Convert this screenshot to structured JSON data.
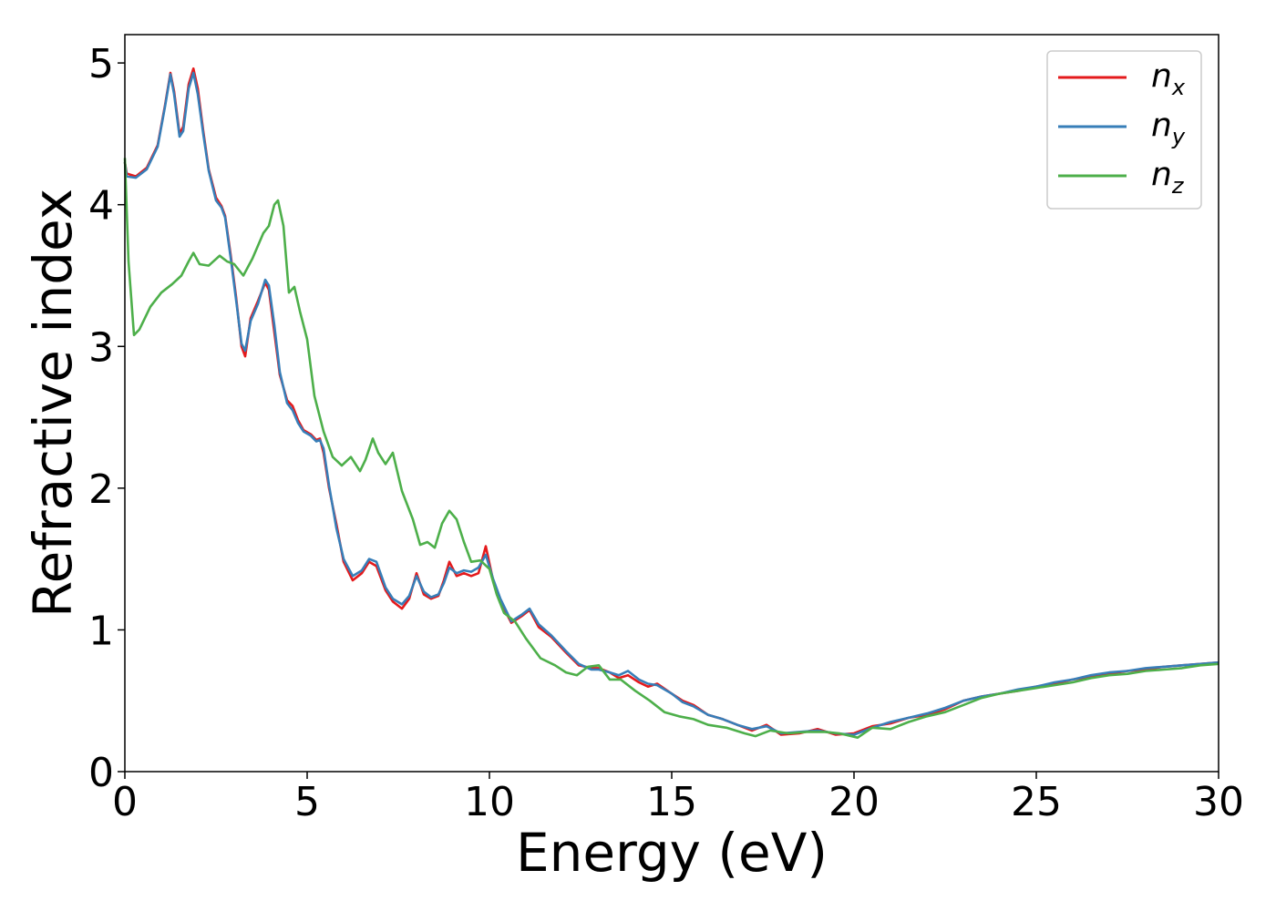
{
  "chart_data": {
    "type": "line",
    "title": "",
    "xlabel": "Energy (eV)",
    "ylabel": "Refractive index",
    "xlim": [
      0,
      30
    ],
    "ylim": [
      0,
      5.2
    ],
    "xticks": [
      0,
      5,
      10,
      15,
      20,
      25,
      30
    ],
    "yticks": [
      0,
      1,
      2,
      3,
      4,
      5
    ],
    "grid": false,
    "legend_position": "top-right",
    "series": [
      {
        "name": "n_x",
        "label_main": "n",
        "label_sub": "x",
        "color": "#e41a1c",
        "points": [
          [
            0,
            4.3
          ],
          [
            0.05,
            4.22
          ],
          [
            0.3,
            4.2
          ],
          [
            0.6,
            4.26
          ],
          [
            0.9,
            4.42
          ],
          [
            1.1,
            4.7
          ],
          [
            1.25,
            4.93
          ],
          [
            1.35,
            4.8
          ],
          [
            1.5,
            4.5
          ],
          [
            1.6,
            4.55
          ],
          [
            1.75,
            4.85
          ],
          [
            1.88,
            4.96
          ],
          [
            2.0,
            4.82
          ],
          [
            2.15,
            4.52
          ],
          [
            2.3,
            4.25
          ],
          [
            2.5,
            4.05
          ],
          [
            2.65,
            3.99
          ],
          [
            2.75,
            3.92
          ],
          [
            2.9,
            3.65
          ],
          [
            3.05,
            3.35
          ],
          [
            3.2,
            3.0
          ],
          [
            3.3,
            2.93
          ],
          [
            3.45,
            3.2
          ],
          [
            3.65,
            3.32
          ],
          [
            3.85,
            3.45
          ],
          [
            3.95,
            3.4
          ],
          [
            4.1,
            3.1
          ],
          [
            4.25,
            2.8
          ],
          [
            4.45,
            2.62
          ],
          [
            4.6,
            2.58
          ],
          [
            4.75,
            2.48
          ],
          [
            4.9,
            2.41
          ],
          [
            5.1,
            2.38
          ],
          [
            5.25,
            2.34
          ],
          [
            5.35,
            2.35
          ],
          [
            5.45,
            2.25
          ],
          [
            5.6,
            2.0
          ],
          [
            5.8,
            1.75
          ],
          [
            6.0,
            1.48
          ],
          [
            6.25,
            1.35
          ],
          [
            6.5,
            1.4
          ],
          [
            6.7,
            1.48
          ],
          [
            6.9,
            1.45
          ],
          [
            7.15,
            1.28
          ],
          [
            7.35,
            1.2
          ],
          [
            7.6,
            1.15
          ],
          [
            7.8,
            1.22
          ],
          [
            8.0,
            1.4
          ],
          [
            8.2,
            1.25
          ],
          [
            8.4,
            1.22
          ],
          [
            8.6,
            1.24
          ],
          [
            8.75,
            1.35
          ],
          [
            8.9,
            1.48
          ],
          [
            9.1,
            1.38
          ],
          [
            9.3,
            1.4
          ],
          [
            9.5,
            1.38
          ],
          [
            9.7,
            1.4
          ],
          [
            9.9,
            1.59
          ],
          [
            10.1,
            1.35
          ],
          [
            10.3,
            1.2
          ],
          [
            10.6,
            1.05
          ],
          [
            10.9,
            1.1
          ],
          [
            11.1,
            1.14
          ],
          [
            11.35,
            1.02
          ],
          [
            11.7,
            0.95
          ],
          [
            12.1,
            0.84
          ],
          [
            12.45,
            0.75
          ],
          [
            12.8,
            0.73
          ],
          [
            13.0,
            0.73
          ],
          [
            13.3,
            0.7
          ],
          [
            13.55,
            0.66
          ],
          [
            13.8,
            0.68
          ],
          [
            14.1,
            0.63
          ],
          [
            14.35,
            0.6
          ],
          [
            14.6,
            0.62
          ],
          [
            15.0,
            0.55
          ],
          [
            15.3,
            0.5
          ],
          [
            15.6,
            0.47
          ],
          [
            16.0,
            0.4
          ],
          [
            16.4,
            0.37
          ],
          [
            16.8,
            0.33
          ],
          [
            17.2,
            0.29
          ],
          [
            17.6,
            0.33
          ],
          [
            18.0,
            0.26
          ],
          [
            18.5,
            0.27
          ],
          [
            19.0,
            0.3
          ],
          [
            19.5,
            0.26
          ],
          [
            20.0,
            0.27
          ],
          [
            20.5,
            0.32
          ],
          [
            21.0,
            0.34
          ],
          [
            21.5,
            0.38
          ],
          [
            22.0,
            0.4
          ],
          [
            22.5,
            0.44
          ],
          [
            23.0,
            0.5
          ],
          [
            23.5,
            0.53
          ],
          [
            24.0,
            0.55
          ],
          [
            24.5,
            0.57
          ],
          [
            25.0,
            0.6
          ],
          [
            25.5,
            0.62
          ],
          [
            26.0,
            0.65
          ],
          [
            26.5,
            0.67
          ],
          [
            27.0,
            0.69
          ],
          [
            27.5,
            0.71
          ],
          [
            28.0,
            0.72
          ],
          [
            28.5,
            0.74
          ],
          [
            29.0,
            0.75
          ],
          [
            29.5,
            0.76
          ],
          [
            30.0,
            0.77
          ]
        ]
      },
      {
        "name": "n_y",
        "label_main": "n",
        "label_sub": "y",
        "color": "#377eb8",
        "points": [
          [
            0,
            4.3
          ],
          [
            0.05,
            4.2
          ],
          [
            0.3,
            4.19
          ],
          [
            0.6,
            4.25
          ],
          [
            0.9,
            4.41
          ],
          [
            1.1,
            4.69
          ],
          [
            1.25,
            4.92
          ],
          [
            1.35,
            4.78
          ],
          [
            1.5,
            4.48
          ],
          [
            1.6,
            4.52
          ],
          [
            1.75,
            4.82
          ],
          [
            1.88,
            4.93
          ],
          [
            2.0,
            4.78
          ],
          [
            2.15,
            4.5
          ],
          [
            2.3,
            4.24
          ],
          [
            2.5,
            4.03
          ],
          [
            2.65,
            3.98
          ],
          [
            2.75,
            3.91
          ],
          [
            2.9,
            3.63
          ],
          [
            3.05,
            3.33
          ],
          [
            3.2,
            3.02
          ],
          [
            3.3,
            2.97
          ],
          [
            3.45,
            3.18
          ],
          [
            3.65,
            3.3
          ],
          [
            3.85,
            3.47
          ],
          [
            3.95,
            3.43
          ],
          [
            4.1,
            3.15
          ],
          [
            4.25,
            2.82
          ],
          [
            4.45,
            2.6
          ],
          [
            4.6,
            2.55
          ],
          [
            4.75,
            2.46
          ],
          [
            4.9,
            2.4
          ],
          [
            5.1,
            2.37
          ],
          [
            5.25,
            2.33
          ],
          [
            5.35,
            2.34
          ],
          [
            5.45,
            2.28
          ],
          [
            5.6,
            2.02
          ],
          [
            5.8,
            1.72
          ],
          [
            6.0,
            1.5
          ],
          [
            6.25,
            1.38
          ],
          [
            6.5,
            1.42
          ],
          [
            6.7,
            1.5
          ],
          [
            6.9,
            1.48
          ],
          [
            7.15,
            1.3
          ],
          [
            7.35,
            1.22
          ],
          [
            7.6,
            1.18
          ],
          [
            7.8,
            1.24
          ],
          [
            8.0,
            1.38
          ],
          [
            8.2,
            1.27
          ],
          [
            8.4,
            1.23
          ],
          [
            8.6,
            1.25
          ],
          [
            8.75,
            1.33
          ],
          [
            8.9,
            1.44
          ],
          [
            9.1,
            1.4
          ],
          [
            9.3,
            1.42
          ],
          [
            9.5,
            1.41
          ],
          [
            9.7,
            1.44
          ],
          [
            9.9,
            1.53
          ],
          [
            10.1,
            1.36
          ],
          [
            10.3,
            1.22
          ],
          [
            10.6,
            1.06
          ],
          [
            10.9,
            1.11
          ],
          [
            11.1,
            1.15
          ],
          [
            11.35,
            1.04
          ],
          [
            11.7,
            0.96
          ],
          [
            12.1,
            0.85
          ],
          [
            12.45,
            0.76
          ],
          [
            12.8,
            0.72
          ],
          [
            13.0,
            0.72
          ],
          [
            13.3,
            0.7
          ],
          [
            13.55,
            0.68
          ],
          [
            13.8,
            0.71
          ],
          [
            14.1,
            0.65
          ],
          [
            14.35,
            0.62
          ],
          [
            14.6,
            0.61
          ],
          [
            15.0,
            0.55
          ],
          [
            15.3,
            0.49
          ],
          [
            15.6,
            0.46
          ],
          [
            16.0,
            0.4
          ],
          [
            16.4,
            0.37
          ],
          [
            16.8,
            0.33
          ],
          [
            17.2,
            0.3
          ],
          [
            17.6,
            0.32
          ],
          [
            18.0,
            0.27
          ],
          [
            18.5,
            0.28
          ],
          [
            19.0,
            0.29
          ],
          [
            19.5,
            0.27
          ],
          [
            20.0,
            0.26
          ],
          [
            20.5,
            0.31
          ],
          [
            21.0,
            0.35
          ],
          [
            21.5,
            0.38
          ],
          [
            22.0,
            0.41
          ],
          [
            22.5,
            0.45
          ],
          [
            23.0,
            0.5
          ],
          [
            23.5,
            0.53
          ],
          [
            24.0,
            0.55
          ],
          [
            24.5,
            0.58
          ],
          [
            25.0,
            0.6
          ],
          [
            25.5,
            0.63
          ],
          [
            26.0,
            0.65
          ],
          [
            26.5,
            0.68
          ],
          [
            27.0,
            0.7
          ],
          [
            27.5,
            0.71
          ],
          [
            28.0,
            0.73
          ],
          [
            28.5,
            0.74
          ],
          [
            29.0,
            0.75
          ],
          [
            29.5,
            0.76
          ],
          [
            30.0,
            0.77
          ]
        ]
      },
      {
        "name": "n_z",
        "label_main": "n",
        "label_sub": "z",
        "color": "#4daf4a",
        "points": [
          [
            0,
            4.33
          ],
          [
            0.1,
            3.6
          ],
          [
            0.25,
            3.08
          ],
          [
            0.4,
            3.12
          ],
          [
            0.7,
            3.28
          ],
          [
            1.0,
            3.38
          ],
          [
            1.3,
            3.44
          ],
          [
            1.55,
            3.5
          ],
          [
            1.75,
            3.6
          ],
          [
            1.88,
            3.66
          ],
          [
            2.05,
            3.58
          ],
          [
            2.3,
            3.57
          ],
          [
            2.6,
            3.64
          ],
          [
            2.8,
            3.6
          ],
          [
            3.0,
            3.58
          ],
          [
            3.25,
            3.5
          ],
          [
            3.5,
            3.62
          ],
          [
            3.8,
            3.8
          ],
          [
            3.95,
            3.85
          ],
          [
            4.1,
            4.0
          ],
          [
            4.2,
            4.03
          ],
          [
            4.35,
            3.85
          ],
          [
            4.5,
            3.38
          ],
          [
            4.65,
            3.42
          ],
          [
            4.8,
            3.25
          ],
          [
            5.0,
            3.05
          ],
          [
            5.2,
            2.65
          ],
          [
            5.45,
            2.4
          ],
          [
            5.7,
            2.22
          ],
          [
            5.95,
            2.16
          ],
          [
            6.2,
            2.22
          ],
          [
            6.45,
            2.12
          ],
          [
            6.6,
            2.2
          ],
          [
            6.8,
            2.35
          ],
          [
            6.95,
            2.25
          ],
          [
            7.15,
            2.17
          ],
          [
            7.35,
            2.25
          ],
          [
            7.6,
            1.98
          ],
          [
            7.9,
            1.78
          ],
          [
            8.1,
            1.6
          ],
          [
            8.3,
            1.62
          ],
          [
            8.5,
            1.58
          ],
          [
            8.7,
            1.75
          ],
          [
            8.9,
            1.84
          ],
          [
            9.1,
            1.78
          ],
          [
            9.3,
            1.62
          ],
          [
            9.5,
            1.48
          ],
          [
            9.75,
            1.49
          ],
          [
            10.0,
            1.43
          ],
          [
            10.2,
            1.25
          ],
          [
            10.4,
            1.12
          ],
          [
            10.7,
            1.06
          ],
          [
            11.0,
            0.94
          ],
          [
            11.4,
            0.8
          ],
          [
            11.8,
            0.75
          ],
          [
            12.1,
            0.7
          ],
          [
            12.4,
            0.68
          ],
          [
            12.7,
            0.74
          ],
          [
            13.0,
            0.75
          ],
          [
            13.3,
            0.65
          ],
          [
            13.6,
            0.65
          ],
          [
            14.0,
            0.57
          ],
          [
            14.4,
            0.5
          ],
          [
            14.8,
            0.42
          ],
          [
            15.2,
            0.39
          ],
          [
            15.6,
            0.37
          ],
          [
            16.0,
            0.33
          ],
          [
            16.5,
            0.31
          ],
          [
            17.0,
            0.27
          ],
          [
            17.3,
            0.25
          ],
          [
            17.7,
            0.29
          ],
          [
            18.2,
            0.27
          ],
          [
            18.7,
            0.28
          ],
          [
            19.2,
            0.28
          ],
          [
            19.6,
            0.27
          ],
          [
            20.1,
            0.24
          ],
          [
            20.5,
            0.31
          ],
          [
            21.0,
            0.3
          ],
          [
            21.5,
            0.35
          ],
          [
            22.0,
            0.39
          ],
          [
            22.5,
            0.42
          ],
          [
            23.0,
            0.47
          ],
          [
            23.5,
            0.52
          ],
          [
            24.0,
            0.55
          ],
          [
            24.5,
            0.57
          ],
          [
            25.0,
            0.59
          ],
          [
            25.5,
            0.61
          ],
          [
            26.0,
            0.63
          ],
          [
            26.5,
            0.66
          ],
          [
            27.0,
            0.68
          ],
          [
            27.5,
            0.69
          ],
          [
            28.0,
            0.71
          ],
          [
            28.5,
            0.72
          ],
          [
            29.0,
            0.73
          ],
          [
            29.5,
            0.75
          ],
          [
            30.0,
            0.76
          ]
        ]
      }
    ]
  }
}
